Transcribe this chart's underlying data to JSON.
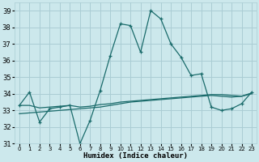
{
  "bg_color": "#cce8ec",
  "grid_color": "#aacdd4",
  "line_color": "#1a6b6b",
  "xlabel": "Humidex (Indice chaleur)",
  "ylim": [
    31,
    39.5
  ],
  "xlim": [
    -0.5,
    23.5
  ],
  "yticks": [
    31,
    32,
    33,
    34,
    35,
    36,
    37,
    38,
    39
  ],
  "xticks": [
    0,
    1,
    2,
    3,
    4,
    5,
    6,
    7,
    8,
    9,
    10,
    11,
    12,
    13,
    14,
    15,
    16,
    17,
    18,
    19,
    20,
    21,
    22,
    23
  ],
  "series1_x": [
    0,
    1,
    2,
    3,
    4,
    5,
    6,
    7,
    8,
    9,
    10,
    11,
    12,
    13,
    14,
    15,
    16,
    17,
    18,
    19,
    20,
    21,
    22,
    23
  ],
  "series1_y": [
    33.3,
    34.1,
    32.3,
    33.1,
    33.2,
    33.3,
    31.0,
    32.4,
    34.2,
    36.3,
    38.2,
    38.1,
    36.5,
    39.0,
    38.5,
    37.0,
    36.2,
    35.1,
    35.2,
    33.2,
    33.0,
    33.1,
    33.4,
    34.1
  ],
  "series2_x": [
    0,
    1,
    2,
    3,
    4,
    5,
    6,
    7,
    8,
    9,
    10,
    11,
    12,
    13,
    14,
    15,
    16,
    17,
    18,
    19,
    20,
    21,
    22,
    23
  ],
  "series2_y": [
    33.3,
    33.3,
    33.15,
    33.2,
    33.25,
    33.3,
    33.2,
    33.25,
    33.35,
    33.4,
    33.5,
    33.55,
    33.6,
    33.65,
    33.7,
    33.75,
    33.8,
    33.85,
    33.9,
    33.95,
    33.95,
    33.9,
    33.85,
    34.0
  ],
  "series3_x": [
    0,
    1,
    2,
    3,
    4,
    5,
    6,
    7,
    8,
    9,
    10,
    11,
    12,
    13,
    14,
    15,
    16,
    17,
    18,
    19,
    20,
    21,
    22,
    23
  ],
  "series3_y": [
    32.8,
    32.85,
    32.9,
    32.95,
    33.0,
    33.05,
    33.1,
    33.15,
    33.2,
    33.3,
    33.4,
    33.5,
    33.55,
    33.6,
    33.65,
    33.7,
    33.75,
    33.8,
    33.85,
    33.9,
    33.85,
    33.8,
    33.85,
    34.05
  ]
}
